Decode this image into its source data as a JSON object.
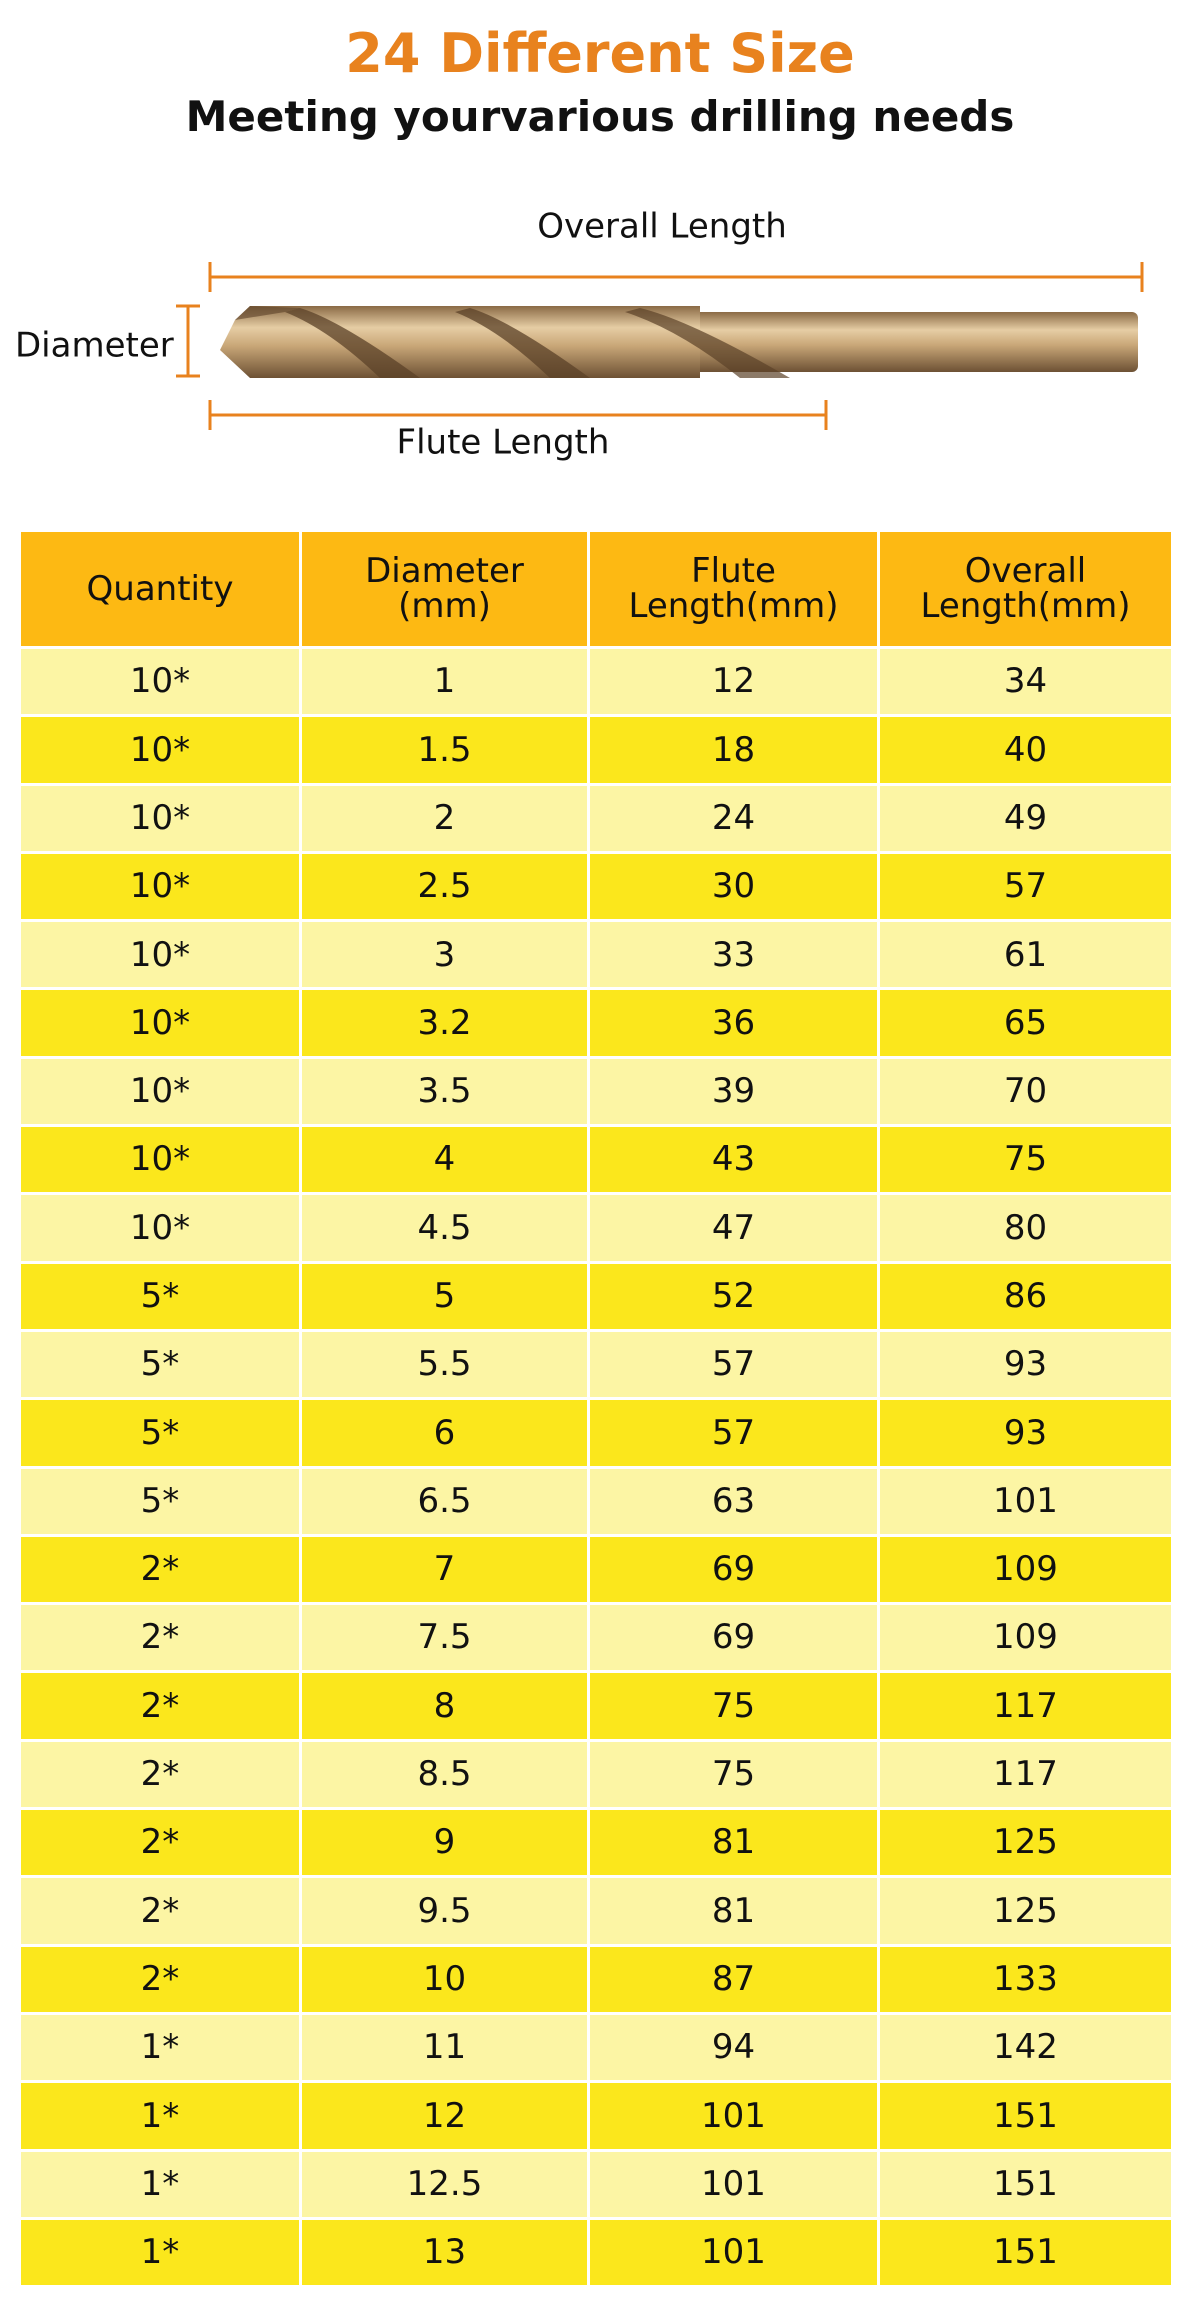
{
  "header": {
    "title": "24 Different Size",
    "subtitle": "Meeting yourvarious drilling needs"
  },
  "diagram": {
    "overall_length": "Overall Length",
    "diameter": "Diameter",
    "flute_length": "Flute Length"
  },
  "table": {
    "columns": [
      [
        "Quantity"
      ],
      [
        "Diameter",
        "(mm)"
      ],
      [
        "Flute",
        "Length(mm)"
      ],
      [
        "Overall",
        "Length(mm)"
      ]
    ],
    "rows": [
      [
        "10*",
        "1",
        "12",
        "34"
      ],
      [
        "10*",
        "1.5",
        "18",
        "40"
      ],
      [
        "10*",
        "2",
        "24",
        "49"
      ],
      [
        "10*",
        "2.5",
        "30",
        "57"
      ],
      [
        "10*",
        "3",
        "33",
        "61"
      ],
      [
        "10*",
        "3.2",
        "36",
        "65"
      ],
      [
        "10*",
        "3.5",
        "39",
        "70"
      ],
      [
        "10*",
        "4",
        "43",
        "75"
      ],
      [
        "10*",
        "4.5",
        "47",
        "80"
      ],
      [
        "5*",
        "5",
        "52",
        "86"
      ],
      [
        "5*",
        "5.5",
        "57",
        "93"
      ],
      [
        "5*",
        "6",
        "57",
        "93"
      ],
      [
        "5*",
        "6.5",
        "63",
        "101"
      ],
      [
        "2*",
        "7",
        "69",
        "109"
      ],
      [
        "2*",
        "7.5",
        "69",
        "109"
      ],
      [
        "2*",
        "8",
        "75",
        "117"
      ],
      [
        "2*",
        "8.5",
        "75",
        "117"
      ],
      [
        "2*",
        "9",
        "81",
        "125"
      ],
      [
        "2*",
        "9.5",
        "81",
        "125"
      ],
      [
        "2*",
        "10",
        "87",
        "133"
      ],
      [
        "1*",
        "11",
        "94",
        "142"
      ],
      [
        "1*",
        "12",
        "101",
        "151"
      ],
      [
        "1*",
        "12.5",
        "101",
        "151"
      ],
      [
        "1*",
        "13",
        "101",
        "151"
      ]
    ]
  }
}
